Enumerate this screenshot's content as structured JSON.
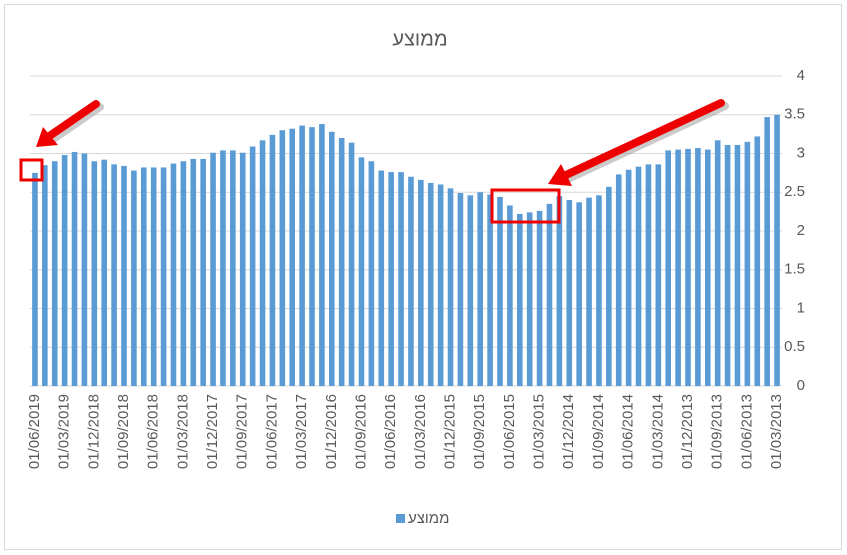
{
  "chart_data": {
    "type": "bar",
    "title": "ממוצע",
    "categories": [
      "01/06/2019",
      null,
      null,
      "01/03/2019",
      null,
      null,
      "01/12/2018",
      null,
      null,
      "01/09/2018",
      null,
      null,
      "01/06/2018",
      null,
      null,
      "01/03/2018",
      null,
      null,
      "01/12/2017",
      null,
      null,
      "01/09/2017",
      null,
      null,
      "01/06/2017",
      null,
      null,
      "01/03/2017",
      null,
      null,
      "01/12/2016",
      null,
      null,
      "01/09/2016",
      null,
      null,
      "01/06/2016",
      null,
      null,
      "01/03/2016",
      null,
      null,
      "01/12/2015",
      null,
      null,
      "01/09/2015",
      null,
      null,
      "01/06/2015",
      null,
      null,
      "01/03/2015",
      null,
      null,
      "01/12/2014",
      null,
      null,
      "01/09/2014",
      null,
      null,
      "01/06/2014",
      null,
      null,
      "01/03/2014",
      null,
      null,
      "01/12/2013",
      null,
      null,
      "01/09/2013",
      null,
      null,
      "01/06/2013",
      null,
      null,
      "01/03/2013"
    ],
    "series": [
      {
        "name": "ממוצע",
        "color": "#5b9bd5",
        "values": [
          2.75,
          2.85,
          2.9,
          2.98,
          3.02,
          3.0,
          2.9,
          2.92,
          2.86,
          2.84,
          2.78,
          2.82,
          2.82,
          2.82,
          2.87,
          2.9,
          2.93,
          2.93,
          3.01,
          3.04,
          3.04,
          3.01,
          3.09,
          3.17,
          3.24,
          3.3,
          3.32,
          3.36,
          3.34,
          3.38,
          3.28,
          3.2,
          3.14,
          2.95,
          2.9,
          2.78,
          2.76,
          2.76,
          2.7,
          2.66,
          2.62,
          2.6,
          2.55,
          2.49,
          2.46,
          2.5,
          2.47,
          2.44,
          2.33,
          2.22,
          2.24,
          2.26,
          2.35,
          2.45,
          2.4,
          2.37,
          2.43,
          2.46,
          2.57,
          2.73,
          2.79,
          2.83,
          2.86,
          2.86,
          3.04,
          3.05,
          3.06,
          3.07,
          3.05,
          3.17,
          3.11,
          3.11,
          3.15,
          3.22,
          3.47,
          3.5
        ]
      }
    ],
    "ylim": [
      0,
      4
    ],
    "yticks": [
      0,
      0.5,
      1,
      1.5,
      2,
      2.5,
      3,
      3.5,
      4
    ],
    "grid": true,
    "y_axis_side": "right",
    "legend": "bottom"
  }
}
